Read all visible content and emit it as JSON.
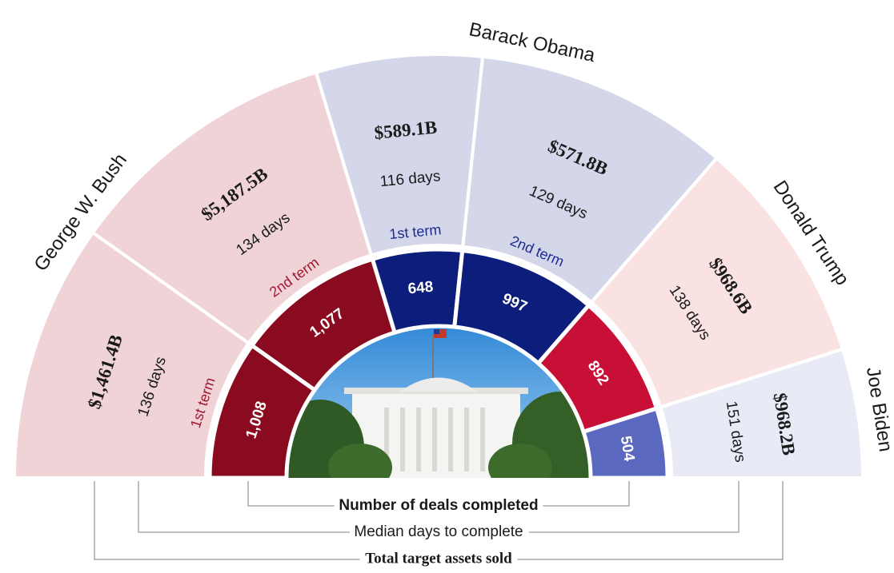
{
  "chart_data": {
    "type": "radial-bar",
    "series": [
      {
        "name": "George W. Bush",
        "color": "#8a0b1f",
        "light_color": "#efd3d7",
        "term_color": "#a3182f",
        "terms": [
          "1st term",
          "2nd term"
        ],
        "deals": [
          1008,
          1077
        ],
        "deal_labels": [
          "1,008",
          "1,077"
        ],
        "days": [
          136,
          134
        ],
        "day_labels": [
          "136 days",
          "134 days"
        ],
        "assets": [
          1461.4,
          5187.5
        ],
        "asset_labels": [
          "$1,461.4B",
          "$5,187.5B"
        ]
      },
      {
        "name": "Barack Obama",
        "color": "#0d1d7c",
        "light_color": "#d3d7e9",
        "term_color": "#1d2a92",
        "terms": [
          "1st term",
          "2nd term"
        ],
        "deals": [
          648,
          997
        ],
        "deal_labels": [
          "648",
          "997"
        ],
        "days": [
          116,
          129
        ],
        "day_labels": [
          "116 days",
          "129 days"
        ],
        "assets": [
          589.1,
          571.8
        ],
        "asset_labels": [
          "$589.1B",
          "$571.8B"
        ]
      },
      {
        "name": "Donald Trump",
        "color": "#c80f35",
        "light_color": "#fae2e2",
        "deals": [
          892
        ],
        "deal_labels": [
          "892"
        ],
        "days": [
          138
        ],
        "day_labels": [
          "138 days"
        ],
        "assets": [
          968.6
        ],
        "asset_labels": [
          "$968.6B"
        ]
      },
      {
        "name": "Joe Biden",
        "color": "#5a68bf",
        "light_color": "#e8ebf6",
        "deals": [
          504
        ],
        "deal_labels": [
          "504"
        ],
        "days": [
          151
        ],
        "day_labels": [
          "151 days"
        ],
        "assets": [
          968.2
        ],
        "asset_labels": [
          "$968.2B"
        ]
      }
    ],
    "legend": {
      "deals": "Number of deals completed",
      "days": "Median days to complete",
      "assets": "Total target assets sold"
    }
  }
}
